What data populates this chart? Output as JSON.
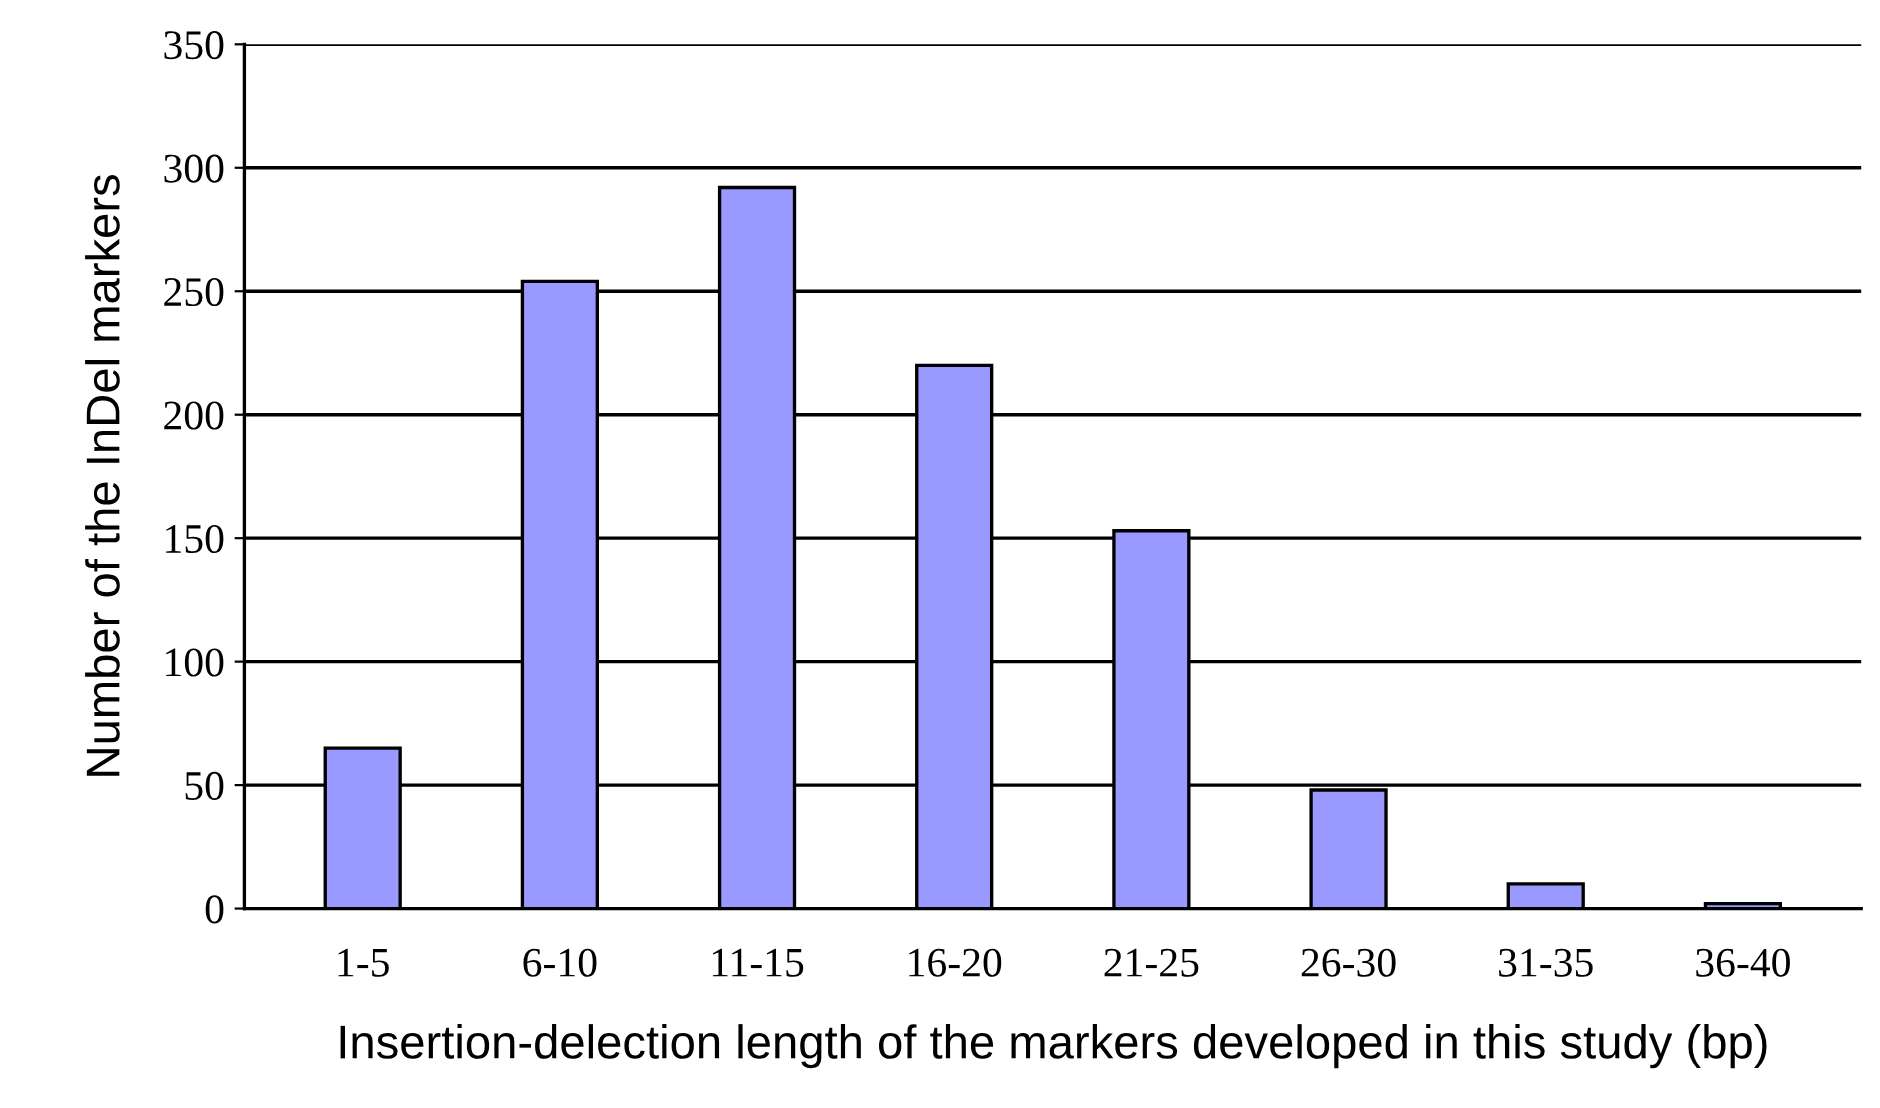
{
  "chart_data": {
    "type": "bar",
    "xlabel": "Insertion-delection length of the markers developed in this study (bp)",
    "ylabel": "Number of the InDel markers",
    "categories": [
      "1-5",
      "6-10",
      "11-15",
      "16-20",
      "21-25",
      "26-30",
      "31-35",
      "36-40"
    ],
    "values": [
      65,
      254,
      292,
      220,
      153,
      48,
      10,
      2
    ],
    "color": "#9999ff",
    "ylim": [
      0,
      350
    ],
    "yticks": [
      0,
      50,
      100,
      150,
      200,
      250,
      300,
      350
    ],
    "grid": "y",
    "legend": false
  }
}
